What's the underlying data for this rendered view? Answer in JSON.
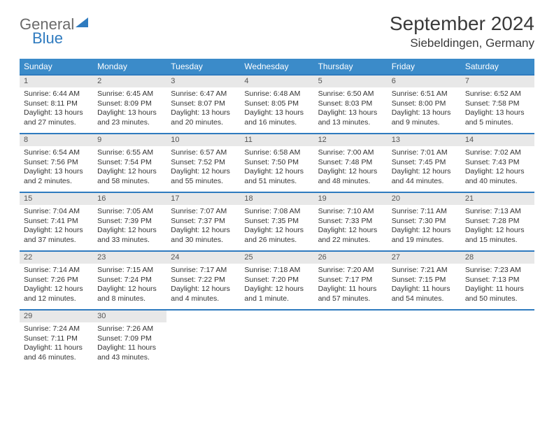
{
  "brand": {
    "word1": "General",
    "word2": "Blue"
  },
  "title": "September 2024",
  "location": "Siebeldingen, Germany",
  "colors": {
    "header_bg": "#3b8bc9",
    "header_text": "#ffffff",
    "accent_border": "#2f7bbf",
    "daynum_bg": "#e8e8e8",
    "text": "#333333",
    "logo_gray": "#6a6a6a",
    "logo_blue": "#2f7bbf",
    "page_bg": "#ffffff"
  },
  "weekdays": [
    "Sunday",
    "Monday",
    "Tuesday",
    "Wednesday",
    "Thursday",
    "Friday",
    "Saturday"
  ],
  "weeks": [
    [
      {
        "n": 1,
        "sr": "6:44 AM",
        "ss": "8:11 PM",
        "dl": "13 hours and 27 minutes."
      },
      {
        "n": 2,
        "sr": "6:45 AM",
        "ss": "8:09 PM",
        "dl": "13 hours and 23 minutes."
      },
      {
        "n": 3,
        "sr": "6:47 AM",
        "ss": "8:07 PM",
        "dl": "13 hours and 20 minutes."
      },
      {
        "n": 4,
        "sr": "6:48 AM",
        "ss": "8:05 PM",
        "dl": "13 hours and 16 minutes."
      },
      {
        "n": 5,
        "sr": "6:50 AM",
        "ss": "8:03 PM",
        "dl": "13 hours and 13 minutes."
      },
      {
        "n": 6,
        "sr": "6:51 AM",
        "ss": "8:00 PM",
        "dl": "13 hours and 9 minutes."
      },
      {
        "n": 7,
        "sr": "6:52 AM",
        "ss": "7:58 PM",
        "dl": "13 hours and 5 minutes."
      }
    ],
    [
      {
        "n": 8,
        "sr": "6:54 AM",
        "ss": "7:56 PM",
        "dl": "13 hours and 2 minutes."
      },
      {
        "n": 9,
        "sr": "6:55 AM",
        "ss": "7:54 PM",
        "dl": "12 hours and 58 minutes."
      },
      {
        "n": 10,
        "sr": "6:57 AM",
        "ss": "7:52 PM",
        "dl": "12 hours and 55 minutes."
      },
      {
        "n": 11,
        "sr": "6:58 AM",
        "ss": "7:50 PM",
        "dl": "12 hours and 51 minutes."
      },
      {
        "n": 12,
        "sr": "7:00 AM",
        "ss": "7:48 PM",
        "dl": "12 hours and 48 minutes."
      },
      {
        "n": 13,
        "sr": "7:01 AM",
        "ss": "7:45 PM",
        "dl": "12 hours and 44 minutes."
      },
      {
        "n": 14,
        "sr": "7:02 AM",
        "ss": "7:43 PM",
        "dl": "12 hours and 40 minutes."
      }
    ],
    [
      {
        "n": 15,
        "sr": "7:04 AM",
        "ss": "7:41 PM",
        "dl": "12 hours and 37 minutes."
      },
      {
        "n": 16,
        "sr": "7:05 AM",
        "ss": "7:39 PM",
        "dl": "12 hours and 33 minutes."
      },
      {
        "n": 17,
        "sr": "7:07 AM",
        "ss": "7:37 PM",
        "dl": "12 hours and 30 minutes."
      },
      {
        "n": 18,
        "sr": "7:08 AM",
        "ss": "7:35 PM",
        "dl": "12 hours and 26 minutes."
      },
      {
        "n": 19,
        "sr": "7:10 AM",
        "ss": "7:33 PM",
        "dl": "12 hours and 22 minutes."
      },
      {
        "n": 20,
        "sr": "7:11 AM",
        "ss": "7:30 PM",
        "dl": "12 hours and 19 minutes."
      },
      {
        "n": 21,
        "sr": "7:13 AM",
        "ss": "7:28 PM",
        "dl": "12 hours and 15 minutes."
      }
    ],
    [
      {
        "n": 22,
        "sr": "7:14 AM",
        "ss": "7:26 PM",
        "dl": "12 hours and 12 minutes."
      },
      {
        "n": 23,
        "sr": "7:15 AM",
        "ss": "7:24 PM",
        "dl": "12 hours and 8 minutes."
      },
      {
        "n": 24,
        "sr": "7:17 AM",
        "ss": "7:22 PM",
        "dl": "12 hours and 4 minutes."
      },
      {
        "n": 25,
        "sr": "7:18 AM",
        "ss": "7:20 PM",
        "dl": "12 hours and 1 minute."
      },
      {
        "n": 26,
        "sr": "7:20 AM",
        "ss": "7:17 PM",
        "dl": "11 hours and 57 minutes."
      },
      {
        "n": 27,
        "sr": "7:21 AM",
        "ss": "7:15 PM",
        "dl": "11 hours and 54 minutes."
      },
      {
        "n": 28,
        "sr": "7:23 AM",
        "ss": "7:13 PM",
        "dl": "11 hours and 50 minutes."
      }
    ],
    [
      {
        "n": 29,
        "sr": "7:24 AM",
        "ss": "7:11 PM",
        "dl": "11 hours and 46 minutes."
      },
      {
        "n": 30,
        "sr": "7:26 AM",
        "ss": "7:09 PM",
        "dl": "11 hours and 43 minutes."
      },
      null,
      null,
      null,
      null,
      null
    ]
  ],
  "labels": {
    "sunrise": "Sunrise:",
    "sunset": "Sunset:",
    "daylight": "Daylight:"
  }
}
